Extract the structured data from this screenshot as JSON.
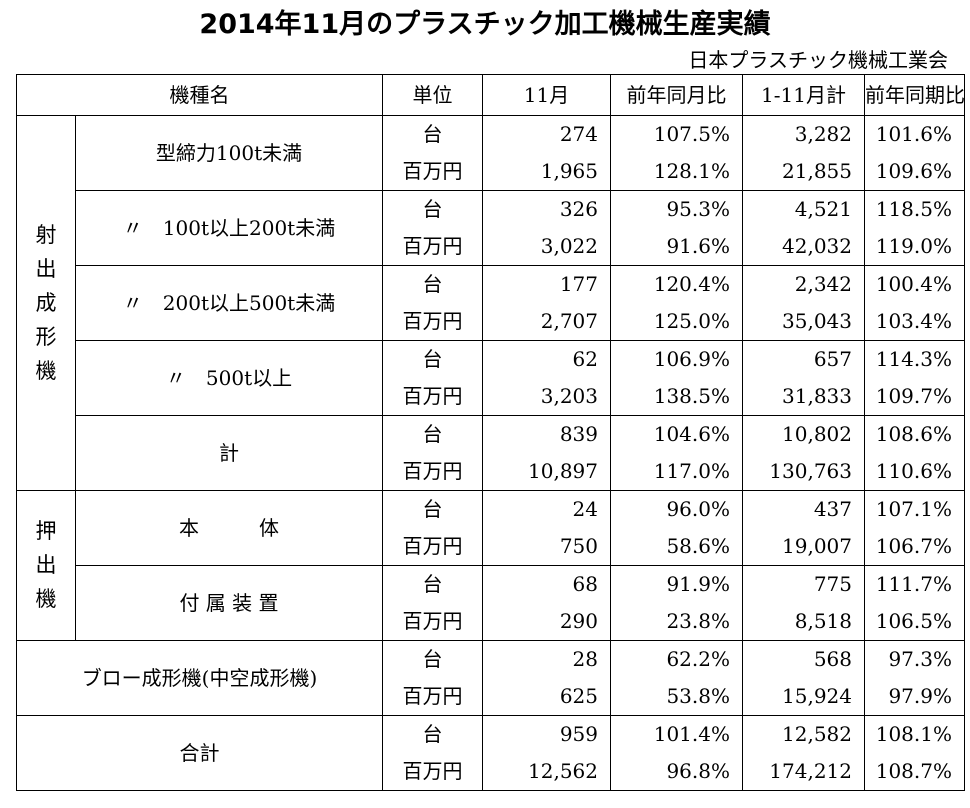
{
  "title": "2014年11月のプラスチック加工機械生産実績",
  "organization": "日本プラスチック機械工業会",
  "headers": [
    "機種名",
    "単位",
    "11月",
    "前年同月比",
    "1-11月計",
    "前年同期比"
  ],
  "units": {
    "count": "台",
    "value": "百万円"
  },
  "groups": [
    {
      "name": "射出成形機",
      "rows": [
        {
          "label": "型締力100t未満",
          "count": [
            "274",
            "107.5%",
            "3,282",
            "101.6%"
          ],
          "value": [
            "1,965",
            "128.1%",
            "21,855",
            "109.6%"
          ]
        },
        {
          "label": "〃　100t以上200t未満",
          "count": [
            "326",
            "95.3%",
            "4,521",
            "118.5%"
          ],
          "value": [
            "3,022",
            "91.6%",
            "42,032",
            "119.0%"
          ]
        },
        {
          "label": "〃　200t以上500t未満",
          "count": [
            "177",
            "120.4%",
            "2,342",
            "100.4%"
          ],
          "value": [
            "2,707",
            "125.0%",
            "35,043",
            "103.4%"
          ]
        },
        {
          "label": "〃　500t以上",
          "count": [
            "62",
            "106.9%",
            "657",
            "114.3%"
          ],
          "value": [
            "3,203",
            "138.5%",
            "31,833",
            "109.7%"
          ]
        },
        {
          "label": "計",
          "count": [
            "839",
            "104.6%",
            "10,802",
            "108.6%"
          ],
          "value": [
            "10,897",
            "117.0%",
            "130,763",
            "110.6%"
          ]
        }
      ]
    },
    {
      "name": "押出機",
      "rows": [
        {
          "label": "本　　　体",
          "count": [
            "24",
            "96.0%",
            "437",
            "107.1%"
          ],
          "value": [
            "750",
            "58.6%",
            "19,007",
            "106.7%"
          ]
        },
        {
          "label": "付 属 装 置",
          "count": [
            "68",
            "91.9%",
            "775",
            "111.7%"
          ],
          "value": [
            "290",
            "23.8%",
            "8,518",
            "106.5%"
          ]
        }
      ]
    }
  ],
  "blow": {
    "label": "ブロー成形機(中空成形機)",
    "count": [
      "28",
      "62.2%",
      "568",
      "97.3%"
    ],
    "value": [
      "625",
      "53.8%",
      "15,924",
      "97.9%"
    ]
  },
  "total": {
    "label": "合計",
    "count": [
      "959",
      "101.4%",
      "12,582",
      "108.1%"
    ],
    "value": [
      "12,562",
      "96.8%",
      "174,212",
      "108.7%"
    ]
  }
}
